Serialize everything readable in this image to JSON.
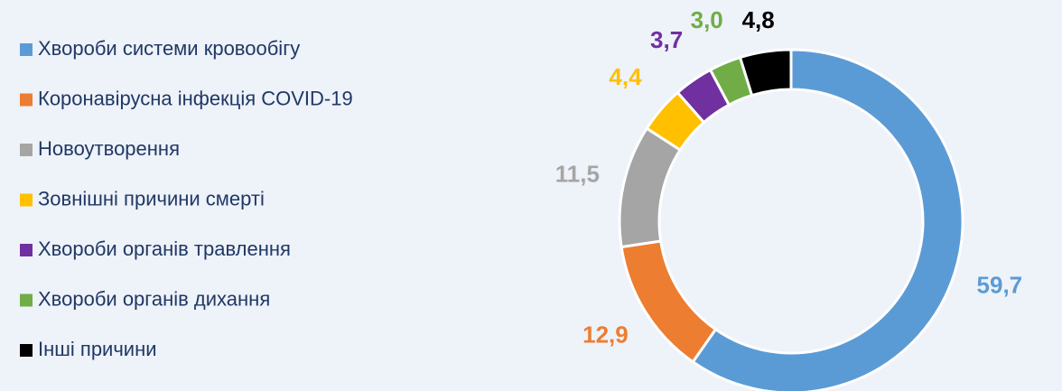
{
  "chart_data": {
    "type": "pie",
    "categories": [
      "Хвороби системи кровообігу",
      "Коронавірусна інфекція COVID-19",
      "Новоутворення",
      "Зовнішні причини смерті",
      "Хвороби органів травлення",
      "Хвороби органів дихання",
      "Інші причини"
    ],
    "values": [
      59.7,
      12.9,
      11.5,
      4.4,
      3.7,
      3.0,
      4.8
    ],
    "value_labels": [
      "59,7",
      "12,9",
      "11,5",
      "4,4",
      "3,7",
      "3,0",
      "4,8"
    ],
    "colors": [
      "#5b9bd5",
      "#ed7d31",
      "#a5a5a5",
      "#ffc000",
      "#7030a0",
      "#70ad47",
      "#000000"
    ],
    "legend": "left"
  }
}
